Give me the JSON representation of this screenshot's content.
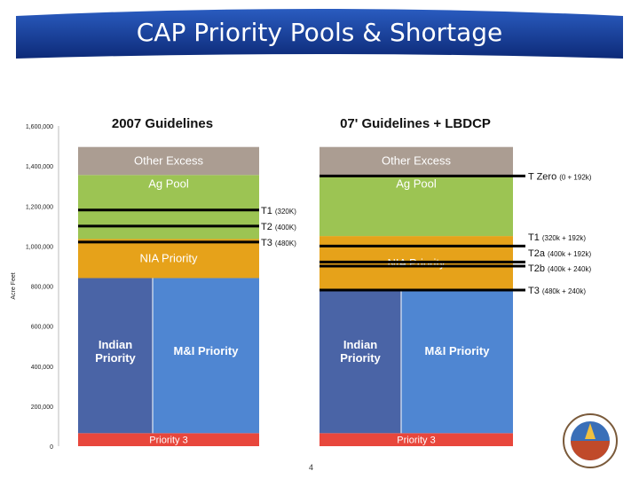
{
  "title": "CAP Priority Pools & Shortage",
  "page_number": "4",
  "colors": {
    "banner_top": "#1f4fb0",
    "banner_bottom": "#0d2a78",
    "excess": "#ab9d92",
    "ag": "#9cc453",
    "nia": "#e6a21a",
    "indian": "#4a64a6",
    "mi": "#4f86d2",
    "priority3": "#e8473c",
    "line": "#000000"
  },
  "chart_data": {
    "type": "bar",
    "stacked": true,
    "ylabel": "Acre Feet",
    "ylim": [
      0,
      1600000
    ],
    "yticks": [
      0,
      200000,
      400000,
      600000,
      800000,
      1000000,
      1200000,
      1400000,
      1600000
    ],
    "ytick_labels": [
      "0",
      "200,000",
      "400,000",
      "600,000",
      "800,000",
      "1,000,000",
      "1,200,000",
      "1,400,000",
      "1,600,000"
    ],
    "grid": false,
    "legend": "none",
    "bars": [
      {
        "name": "2007 Guidelines",
        "segments": [
          {
            "key": "priority3",
            "label": "Priority 3",
            "from": 0,
            "to": 65000
          },
          {
            "key": "indian",
            "label": "Indian\nPriority",
            "from": 65000,
            "to": 840000
          },
          {
            "key": "mi",
            "label": "M&I Priority",
            "from": 65000,
            "to": 840000
          },
          {
            "key": "nia",
            "label": "NIA Priority",
            "from": 840000,
            "to": 1035000
          },
          {
            "key": "ag",
            "label": "Ag Pool",
            "from": 1035000,
            "to": 1355000
          },
          {
            "key": "excess",
            "label": "Other Excess",
            "from": 1355000,
            "to": 1495000
          }
        ]
      },
      {
        "name": "07' Guidelines + LBDCP",
        "segments": [
          {
            "key": "priority3",
            "label": "Priority 3",
            "from": 0,
            "to": 65000
          },
          {
            "key": "indian",
            "label": "Indian\nPriority",
            "from": 65000,
            "to": 775000
          },
          {
            "key": "mi",
            "label": "M&I Priority",
            "from": 65000,
            "to": 775000
          },
          {
            "key": "nia",
            "label": "NIA Priority",
            "from": 775000,
            "to": 1050000
          },
          {
            "key": "ag",
            "label": "Ag Pool",
            "from": 1050000,
            "to": 1355000
          },
          {
            "key": "excess",
            "label": "Other Excess",
            "from": 1355000,
            "to": 1495000
          }
        ]
      }
    ],
    "shortage_lines_2007": [
      {
        "label": "T1",
        "note": "(320K)",
        "value": 1180000
      },
      {
        "label": "T2",
        "note": "(400K)",
        "value": 1100000
      },
      {
        "label": "T3",
        "note": "(480K)",
        "value": 1020000
      }
    ],
    "shortage_lines_lbdcp": [
      {
        "label": "T Zero",
        "note": "(0 + 192k)",
        "value": 1350000
      },
      {
        "label": "T1",
        "note": "(320k + 192k)",
        "value": 1000000
      },
      {
        "label": "T2a",
        "note": "(400k + 192k)",
        "value": 920000
      },
      {
        "label": "T2b",
        "note": "(400k + 240k)",
        "value": 900000
      },
      {
        "label": "T3",
        "note": "(480k + 240k)",
        "value": 780000
      }
    ]
  }
}
